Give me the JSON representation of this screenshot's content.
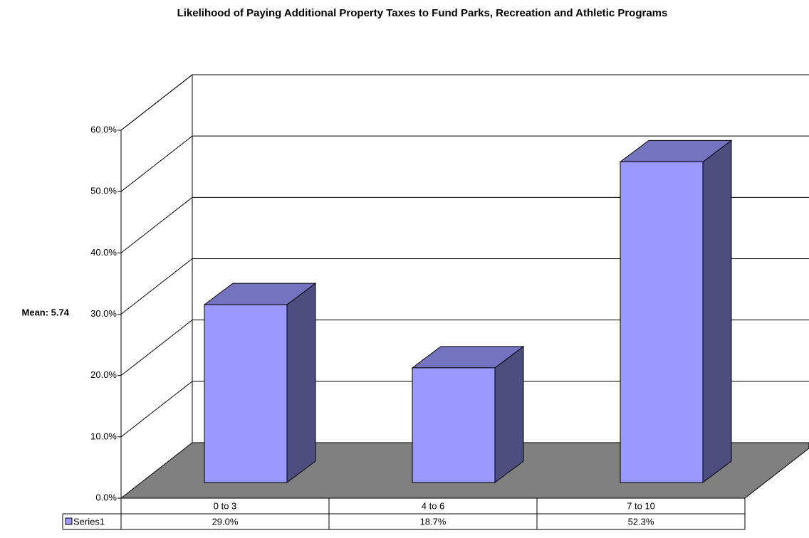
{
  "chart_data": {
    "type": "bar3d",
    "title": "Likelihood of Paying Additional Property Taxes to Fund Parks, Recreation and Athletic Programs",
    "ylabel": "Mean: 5.74",
    "categories": [
      "0 to 3",
      "4 to 6",
      "7 to 10"
    ],
    "series": [
      {
        "name": "Series1",
        "color": "#9999ff",
        "values": [
          29.0,
          18.7,
          52.3
        ],
        "value_labels": [
          "29.0%",
          "18.7%",
          "52.3%"
        ]
      }
    ],
    "ylim": [
      0,
      60
    ],
    "yticks": [
      {
        "value": 0,
        "label": "0.0%"
      },
      {
        "value": 10,
        "label": "10.0%"
      },
      {
        "value": 20,
        "label": "20.0%"
      },
      {
        "value": 30,
        "label": "30.0%"
      },
      {
        "value": 40,
        "label": "40.0%"
      },
      {
        "value": 50,
        "label": "50.0%"
      },
      {
        "value": 60,
        "label": "60.0%"
      }
    ],
    "grid": true
  }
}
